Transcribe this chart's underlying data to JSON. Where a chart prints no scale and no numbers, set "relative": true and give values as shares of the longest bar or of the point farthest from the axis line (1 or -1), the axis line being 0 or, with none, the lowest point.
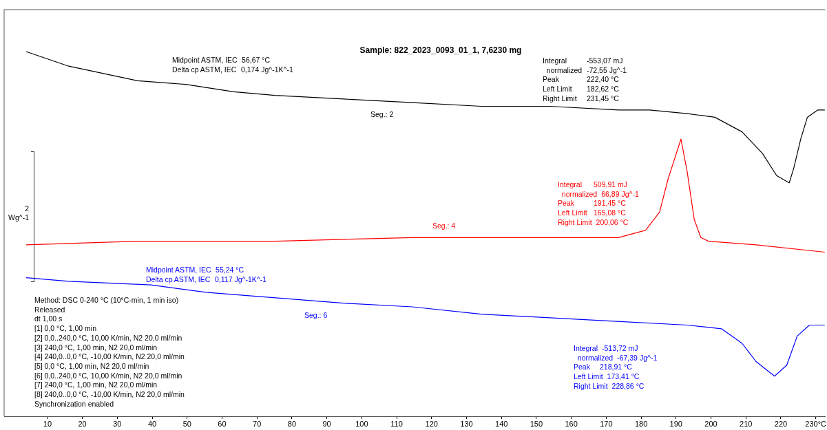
{
  "chart_data": {
    "type": "line",
    "title": "Sample: 822_2023_0093_01_1, 7,6230 mg",
    "ylabel": "2 Wg^-1",
    "relative": true,
    "grid": false,
    "legend": false,
    "marker": "none",
    "line_style": "solid",
    "xlim": [
      -2.4,
      232.7
    ],
    "xticks": [
      10,
      20,
      30,
      40,
      50,
      60,
      70,
      80,
      90,
      100,
      110,
      120,
      130,
      140,
      150,
      160,
      170,
      180,
      190,
      200,
      210,
      220,
      {
        "value": 230,
        "label": "230°C"
      }
    ],
    "series": [
      {
        "color": "#000000",
        "x": [
          3.9,
          16.1,
          35.8,
          49.6,
          63.3,
          75.1,
          94.8,
          114.5,
          134.2,
          153.8,
          173.5,
          182.4,
          193.2,
          201.1,
          208.9,
          214.8,
          218.8,
          222.4,
          223.7,
          225.7,
          227.6,
          230.6,
          232.6
        ],
        "values": [
          1.0,
          0.96,
          0.92,
          0.91,
          0.89,
          0.88,
          0.87,
          0.86,
          0.85,
          0.85,
          0.84,
          0.84,
          0.83,
          0.82,
          0.78,
          0.72,
          0.66,
          0.64,
          0.68,
          0.76,
          0.82,
          0.84,
          0.84
        ]
      },
      {
        "color": "#ff0000",
        "x": [
          3.9,
          35.8,
          75.1,
          114.5,
          153.8,
          164.9,
          173.5,
          181.3,
          185.3,
          187.7,
          191.4,
          193.2,
          195.2,
          197.1,
          199.3,
          212.9,
          232.6
        ],
        "values": [
          0.47,
          0.48,
          0.48,
          0.49,
          0.49,
          0.49,
          0.49,
          0.51,
          0.56,
          0.65,
          0.76,
          0.67,
          0.54,
          0.49,
          0.48,
          0.47,
          0.45
        ]
      },
      {
        "color": "#0000ff",
        "x": [
          3.9,
          16.1,
          39.7,
          55.4,
          68.4,
          94.8,
          114.5,
          134.2,
          153.8,
          173.1,
          193.2,
          203.0,
          208.9,
          212.9,
          218.2,
          221.7,
          224.7,
          228.2,
          232.6
        ],
        "values": [
          0.38,
          0.37,
          0.36,
          0.34,
          0.33,
          0.31,
          0.3,
          0.28,
          0.27,
          0.26,
          0.25,
          0.24,
          0.2,
          0.15,
          0.11,
          0.14,
          0.22,
          0.25,
          0.25
        ]
      }
    ],
    "annotations": [
      "Midpoint ASTM, IEC\t56,67 °C\nDelta cp ASTM, IEC\t0,174 Jg^-1K^-1",
      "Integral\t-553,07 mJ\n  normalized\t-72,55 Jg^-1\nPeak\t222,40 °C\nLeft Limit\t182,62 °C\nRight Limit\t231,45 °C",
      "Seg.: 2",
      "Integral\t509,91 mJ\n  normalized\t66,89 Jg^-1\nPeak\t191,45 °C\nLeft Limit\t165,08 °C\nRight Limit\t200,06 °C",
      "Seg.: 4",
      "Midpoint ASTM, IEC\t55,24 °C\nDelta cp ASTM, IEC\t0,117 Jg^-1K^-1",
      "Seg.: 6",
      "Integral\t-513,72 mJ\n  normalized\t-67,39 Jg^-1\nPeak\t218,91 °C\nLeft Limit\t173,41 °C\nRight Limit\t228,86 °C",
      "Method: DSC 0-240 °C (10°C-min, 1 min iso)\nReleased\ndt 1,00 s\n[1] 0,0 °C, 1,00 min\n[2] 0,0..240,0 °C, 10,00 K/min, N2 20,0 ml/min\n[3] 240,0 °C, 1,00 min, N2 20,0 ml/min\n[4] 240,0..0,0 °C, -10,00 K/min, N2 20,0 ml/min\n[5] 0,0 °C, 1,00 min, N2 20,0 ml/min\n[6] 0,0..240,0 °C, 10,00 K/min, N2 20,0 ml/min\n[7] 240,0 °C, 1,00 min, N2 20,0 ml/min\n[8] 240,0..0,0 °C, -10,00 K/min, N2 20,0 ml/min\nSynchronization enabled"
    ]
  }
}
